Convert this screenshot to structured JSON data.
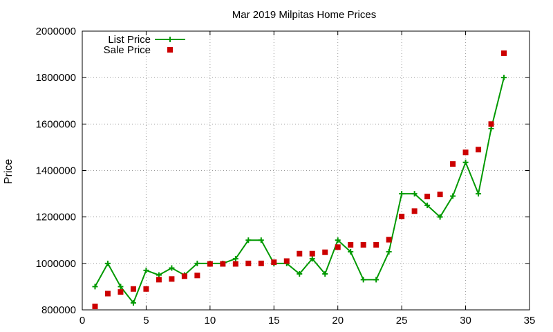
{
  "chart_data": {
    "type": "line",
    "title": "Mar 2019 Milpitas Home Prices",
    "xlabel": "",
    "ylabel": "Price",
    "xlim": [
      0,
      35
    ],
    "ylim": [
      800000,
      2000000
    ],
    "x_ticks": [
      0,
      5,
      10,
      15,
      20,
      25,
      30,
      35
    ],
    "y_ticks": [
      800000,
      1000000,
      1200000,
      1400000,
      1600000,
      1800000,
      2000000
    ],
    "grid": true,
    "legend_position": "top-left",
    "series": [
      {
        "name": "List Price",
        "style": "line-with-plus-markers",
        "color": "#009900",
        "x": [
          1,
          2,
          3,
          4,
          5,
          6,
          7,
          8,
          9,
          10,
          11,
          12,
          13,
          14,
          15,
          16,
          17,
          18,
          19,
          20,
          21,
          22,
          23,
          24,
          25,
          26,
          27,
          28,
          29,
          30,
          31,
          32,
          33
        ],
        "y": [
          900000,
          1000000,
          900000,
          830000,
          970000,
          950000,
          980000,
          950000,
          1000000,
          1000000,
          1000000,
          1020000,
          1100000,
          1100000,
          1000000,
          1000000,
          955000,
          1020000,
          955000,
          1100000,
          1050000,
          930000,
          930000,
          1050000,
          1300000,
          1300000,
          1250000,
          1200000,
          1290000,
          1435000,
          1300000,
          1580000,
          1800000
        ]
      },
      {
        "name": "Sale Price",
        "style": "square-markers",
        "color": "#cc0000",
        "x": [
          1,
          2,
          3,
          4,
          5,
          6,
          7,
          8,
          9,
          10,
          11,
          12,
          13,
          14,
          15,
          16,
          17,
          18,
          19,
          20,
          21,
          22,
          23,
          24,
          25,
          26,
          27,
          28,
          29,
          30,
          31,
          32,
          33
        ],
        "y": [
          815000,
          870000,
          877000,
          890000,
          890000,
          930000,
          933000,
          945000,
          948000,
          998000,
          998000,
          998000,
          1000000,
          1000000,
          1005000,
          1010000,
          1042000,
          1042000,
          1048000,
          1070000,
          1080000,
          1080000,
          1080000,
          1102000,
          1202000,
          1225000,
          1288000,
          1297000,
          1428000,
          1478000,
          1490000,
          1600000,
          1905000
        ]
      }
    ]
  }
}
